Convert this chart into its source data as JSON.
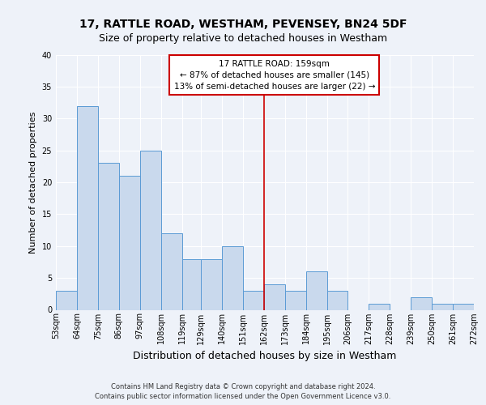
{
  "title": "17, RATTLE ROAD, WESTHAM, PEVENSEY, BN24 5DF",
  "subtitle": "Size of property relative to detached houses in Westham",
  "xlabel": "Distribution of detached houses by size in Westham",
  "ylabel": "Number of detached properties",
  "bin_edges": [
    53,
    64,
    75,
    86,
    97,
    108,
    119,
    129,
    140,
    151,
    162,
    173,
    184,
    195,
    206,
    217,
    228,
    239,
    250,
    261,
    272
  ],
  "bin_labels": [
    "53sqm",
    "64sqm",
    "75sqm",
    "86sqm",
    "97sqm",
    "108sqm",
    "119sqm",
    "129sqm",
    "140sqm",
    "151sqm",
    "162sqm",
    "173sqm",
    "184sqm",
    "195sqm",
    "206sqm",
    "217sqm",
    "228sqm",
    "239sqm",
    "250sqm",
    "261sqm",
    "272sqm"
  ],
  "bar_heights": [
    3,
    32,
    23,
    21,
    25,
    12,
    8,
    8,
    10,
    3,
    4,
    3,
    6,
    3,
    0,
    1,
    0,
    2,
    1,
    1
  ],
  "bar_color": "#c9d9ed",
  "bar_edgecolor": "#5b9bd5",
  "vline_x": 162,
  "vline_color": "#cc0000",
  "ylim": [
    0,
    40
  ],
  "yticks": [
    0,
    5,
    10,
    15,
    20,
    25,
    30,
    35,
    40
  ],
  "annotation_line1": "17 RATTLE ROAD: 159sqm",
  "annotation_line2": "← 87% of detached houses are smaller (145)",
  "annotation_line3": "13% of semi-detached houses are larger (22) →",
  "annotation_box_color": "#ffffff",
  "annotation_box_edgecolor": "#cc0000",
  "footer_line1": "Contains HM Land Registry data © Crown copyright and database right 2024.",
  "footer_line2": "Contains public sector information licensed under the Open Government Licence v3.0.",
  "bg_color": "#eef2f9",
  "grid_color": "#ffffff",
  "title_fontsize": 10,
  "subtitle_fontsize": 9,
  "ylabel_fontsize": 8,
  "xlabel_fontsize": 9,
  "tick_fontsize": 7,
  "footer_fontsize": 6
}
